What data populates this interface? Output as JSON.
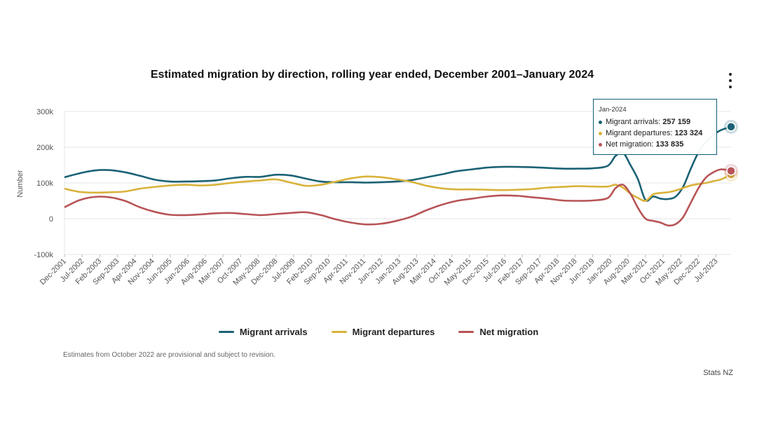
{
  "colors": {
    "arrivals": "#1b6275",
    "departures": "#d9b23a",
    "net": "#b85456",
    "grid": "#e6e6e6"
  },
  "menu": {
    "icon": "more-vertical-icon"
  },
  "tooltip": {
    "date": "Jan-2024",
    "rows": [
      {
        "label": "Migrant arrivals:",
        "value": "257 159"
      },
      {
        "label": "Migrant departures:",
        "value": "123 324"
      },
      {
        "label": "Net migration:",
        "value": "133 835"
      }
    ]
  },
  "footnote": "Estimates from October 2022 are provisional and subject to revision.",
  "source": "Stats NZ",
  "chart_data": {
    "type": "line",
    "title": "Estimated migration by direction, rolling year ended, December 2001–January 2024",
    "xlabel": "",
    "ylabel": "Number",
    "ylim": [
      -100000,
      300000
    ],
    "yticks": [
      -100000,
      0,
      100000,
      200000,
      300000
    ],
    "ytick_labels": [
      "-100k",
      "0",
      "100k",
      "200k",
      "300k"
    ],
    "grid": true,
    "legend_position": "bottom",
    "x_start": "Dec-2001",
    "x_end": "Jan-2024",
    "xtick_labels": [
      "Dec-2001",
      "Jul-2002",
      "Feb-2003",
      "Sep-2003",
      "Apr-2004",
      "Nov-2004",
      "Jun-2005",
      "Jan-2006",
      "Aug-2006",
      "Mar-2007",
      "Oct-2007",
      "May-2008",
      "Dec-2008",
      "Jul-2009",
      "Feb-2010",
      "Sep-2010",
      "Apr-2011",
      "Nov-2011",
      "Jun-2012",
      "Jan-2013",
      "Aug-2013",
      "Mar-2014",
      "Oct-2014",
      "May-2015",
      "Dec-2015",
      "Jul-2016",
      "Feb-2017",
      "Sep-2017",
      "Apr-2018",
      "Nov-2018",
      "Jun-2019",
      "Jan-2020",
      "Aug-2020",
      "Mar-2021",
      "Oct-2021",
      "May-2022",
      "Dec-2022",
      "Jul-2023"
    ],
    "x": [
      "Dec-2001",
      "Jun-2002",
      "Dec-2002",
      "Jun-2003",
      "Dec-2003",
      "Jun-2004",
      "Dec-2004",
      "Jun-2005",
      "Dec-2005",
      "Jun-2006",
      "Dec-2006",
      "Jun-2007",
      "Dec-2007",
      "Jun-2008",
      "Dec-2008",
      "Jun-2009",
      "Dec-2009",
      "Jun-2010",
      "Dec-2010",
      "Jun-2011",
      "Dec-2011",
      "Jun-2012",
      "Dec-2012",
      "Jun-2013",
      "Dec-2013",
      "Jun-2014",
      "Dec-2014",
      "Jun-2015",
      "Dec-2015",
      "Jun-2016",
      "Dec-2016",
      "Jun-2017",
      "Dec-2017",
      "Jun-2018",
      "Dec-2018",
      "Jun-2019",
      "Dec-2019",
      "Mar-2020",
      "Jun-2020",
      "Sep-2020",
      "Dec-2020",
      "Mar-2021",
      "Jun-2021",
      "Sep-2021",
      "Dec-2021",
      "Mar-2022",
      "Jun-2022",
      "Sep-2022",
      "Dec-2022",
      "Mar-2023",
      "Jun-2023",
      "Sep-2023",
      "Jan-2024"
    ],
    "series": [
      {
        "name": "Migrant arrivals",
        "values": [
          116000,
          127000,
          135000,
          136000,
          130000,
          120000,
          109000,
          104000,
          104000,
          105000,
          107000,
          113000,
          117000,
          117000,
          123000,
          121000,
          112000,
          104000,
          102000,
          102000,
          101000,
          102000,
          104000,
          108000,
          116000,
          124000,
          133000,
          138000,
          143000,
          145000,
          145000,
          144000,
          142000,
          140000,
          140000,
          141000,
          148000,
          175000,
          185000,
          150000,
          110000,
          52000,
          62000,
          56000,
          55000,
          62000,
          90000,
          140000,
          185000,
          215000,
          235000,
          248000,
          257159
        ]
      },
      {
        "name": "Migrant departures",
        "values": [
          84000,
          75000,
          73000,
          74000,
          76000,
          84000,
          89000,
          93000,
          95000,
          93000,
          95000,
          100000,
          104000,
          107000,
          110000,
          101000,
          92000,
          95000,
          104000,
          113000,
          118000,
          116000,
          110000,
          103000,
          92000,
          85000,
          82000,
          82000,
          81000,
          80000,
          81000,
          83000,
          87000,
          89000,
          91000,
          90000,
          90000,
          95000,
          87000,
          70000,
          58000,
          50000,
          68000,
          72000,
          74000,
          79000,
          86000,
          93000,
          97000,
          100000,
          105000,
          110000,
          123324
        ]
      },
      {
        "name": "Net migration",
        "values": [
          32000,
          52000,
          61000,
          60000,
          50000,
          32000,
          19000,
          11000,
          10000,
          12000,
          15000,
          16000,
          13000,
          10000,
          13000,
          16000,
          18000,
          10000,
          -2000,
          -11000,
          -16000,
          -14000,
          -6000,
          6000,
          24000,
          39000,
          50000,
          56000,
          62000,
          65000,
          64000,
          60000,
          56000,
          51000,
          50000,
          51000,
          58000,
          85000,
          95000,
          70000,
          30000,
          0,
          -6000,
          -11000,
          -19000,
          -15000,
          5000,
          45000,
          85000,
          115000,
          130000,
          138000,
          133835
        ]
      }
    ]
  }
}
